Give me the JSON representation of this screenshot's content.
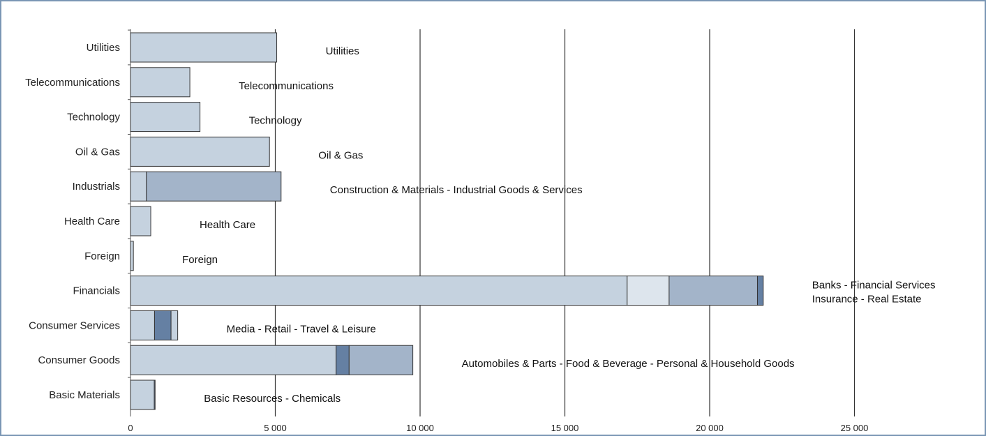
{
  "chart_data": {
    "type": "bar",
    "orientation": "horizontal",
    "stacked": true,
    "title": "",
    "xlabel": "",
    "ylabel": "",
    "xlim": [
      0,
      25000
    ],
    "x_ticks": [
      0,
      5000,
      10000,
      15000,
      20000,
      25000
    ],
    "x_tick_labels": [
      "0",
      "5 000",
      "10 000",
      "15 000",
      "20 000",
      "25 000"
    ],
    "grid": "vertical",
    "legend": "none",
    "categories": [
      "Utilities",
      "Telecommunications",
      "Technology",
      "Oil & Gas",
      "Industrials",
      "Health Care",
      "Foreign",
      "Financials",
      "Consumer Services",
      "Consumer Goods",
      "Basic Materials"
    ],
    "segments": [
      [
        5050
      ],
      [
        2050
      ],
      [
        2400
      ],
      [
        4800
      ],
      [
        550,
        4650
      ],
      [
        700
      ],
      [
        100
      ],
      [
        17150,
        1450,
        3050,
        200
      ],
      [
        830,
        570,
        230
      ],
      [
        7100,
        450,
        2200
      ],
      [
        820,
        30
      ]
    ],
    "annotations": [
      [
        "Utilities"
      ],
      [
        "Telecommunications"
      ],
      [
        "Technology"
      ],
      [
        "Oil & Gas"
      ],
      [
        "Construction & Materials - Industrial Goods & Services"
      ],
      [
        "Health Care"
      ],
      [
        "Foreign"
      ],
      [
        "Banks - Financial Services",
        "Insurance - Real Estate"
      ],
      [
        "Media - Retail - Travel & Leisure"
      ],
      [
        "Automobiles & Parts - Food & Beverage  - Personal & Household Goods"
      ],
      [
        "Basic Resources - Chemicals"
      ]
    ],
    "segment_colors": [
      [
        "#c5d2df"
      ],
      [
        "#c5d2df"
      ],
      [
        "#c5d2df"
      ],
      [
        "#c5d2df"
      ],
      [
        "#c5d2df",
        "#a3b4c9"
      ],
      [
        "#c5d2df"
      ],
      [
        "#c5d2df"
      ],
      [
        "#c5d2df",
        "#dde5ed",
        "#a3b4c9",
        "#6580a3"
      ],
      [
        "#c5d2df",
        "#6580a3",
        "#c5d2df"
      ],
      [
        "#c5d2df",
        "#6580a3",
        "#a3b4c9"
      ],
      [
        "#c5d2df",
        "#6580a3"
      ]
    ],
    "frame_color": "#7a96b4",
    "gridline_color": "#333333",
    "bar_outline_color": "#333333"
  }
}
